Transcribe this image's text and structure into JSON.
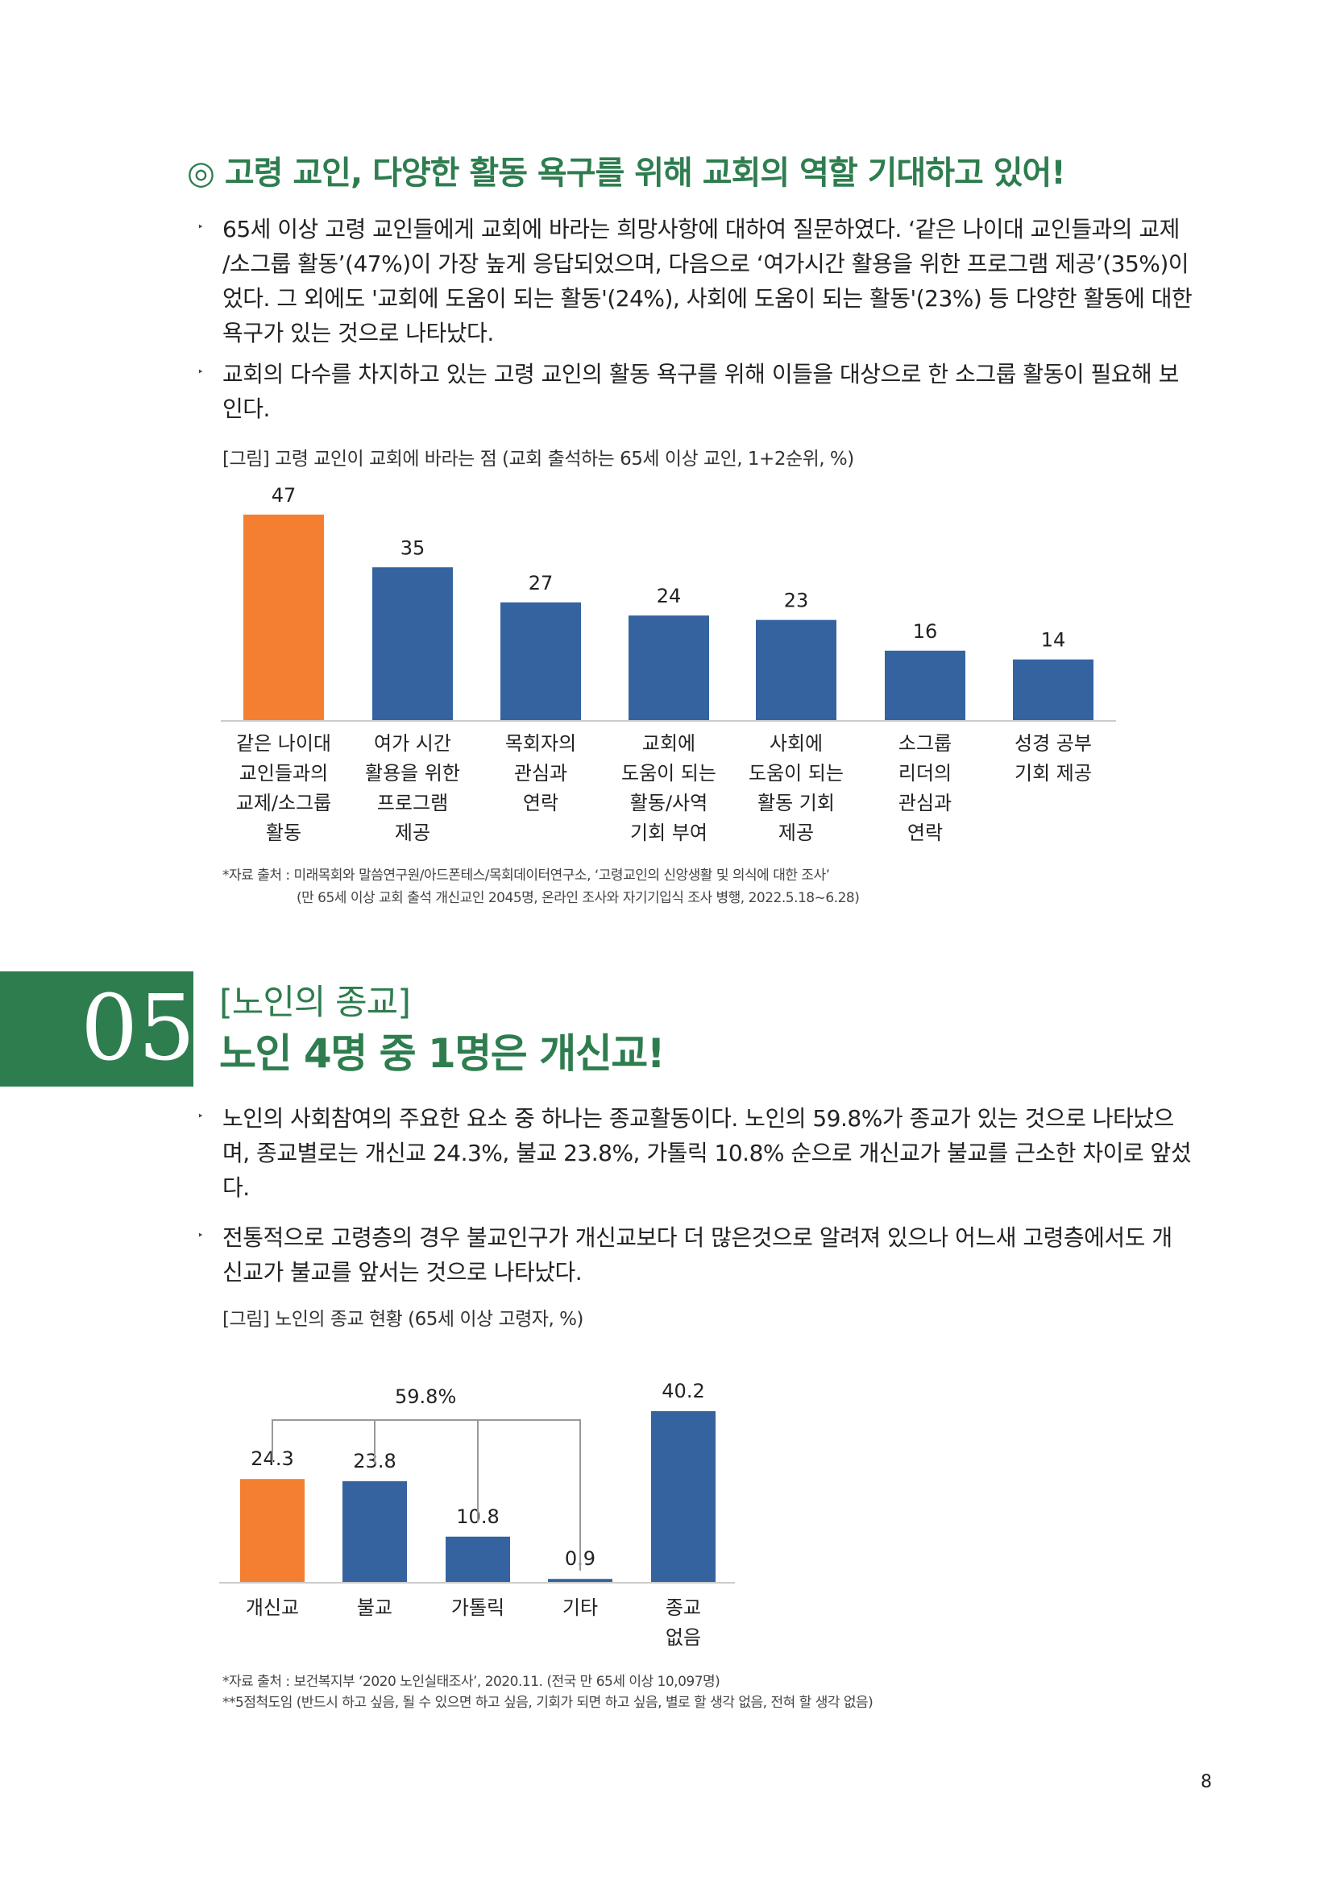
{
  "section1": {
    "heading": "◎ 고령 교인, 다양한 활동 욕구를 위해 교회의 역할 기대하고 있어!",
    "bullets": [
      [
        "65세 이상 고령 교인들에게 교회에 바라는 희망사항에 대하여 질문하였다. ‘같은 나이대 교인들과의 교제",
        "/소그룹 활동’(47%)이 가장 높게 응답되었으며, 다음으로 ‘여가시간 활용을 위한 프로그램 제공’(35%)이",
        "었다. 그 외에도 '교회에 도움이 되는 활동'(24%), 사회에 도움이 되는 활동'(23%) 등 다양한 활동에 대한",
        "욕구가 있는 것으로 나타났다."
      ],
      [
        "교회의 다수를 차지하고 있는 고령 교인의 활동 욕구를 위해 이들을 대상으로 한 소그룹 활동이 필요해 보",
        "인다."
      ]
    ],
    "caption": "[그림] 고령 교인이 교회에 바라는 점 (교회 출석하는 65세 이상 교인, 1+2순위, %)",
    "source_line1": "*자료 출처 : 미래목회와 말씀연구원/아드폰테스/목회데이터연구소, ‘고령교인의 신앙생활 및 의식에 대한 조사’",
    "source_line2": "(만 65세 이상 교회 출석 개신교인 2045명, 온라인 조사와 자기기입식 조사 병행, 2022.5.18~6.28)"
  },
  "section2": {
    "number": "05",
    "tag": "[노인의 종교]",
    "title": "노인 4명 중 1명은 개신교!",
    "bullets": [
      [
        "노인의 사회참여의 주요한 요소 중 하나는 종교활동이다. 노인의 59.8%가 종교가 있는 것으로 나타났으",
        "며, 종교별로는 개신교 24.3%, 불교 23.8%, 가톨릭 10.8% 순으로 개신교가 불교를 근소한 차이로 앞섰",
        "다."
      ],
      [
        "전통적으로 고령층의 경우 불교인구가 개신교보다 더 많은것으로 알려져 있으나 어느새 고령층에서도 개",
        "신교가 불교를 앞서는 것으로 나타났다."
      ]
    ],
    "caption": "[그림] 노인의 종교 현황 (65세 이상 고령자, %)",
    "bracket_label": "59.8%",
    "source_line1": "*자료 출처 : 보건복지부 ‘2020 노인실태조사’, 2020.11. (전국 만 65세 이상 10,097명)",
    "source_line2": "**5점척도임 (반드시 하고 싶음, 될 수 있으면 하고 싶음, 기회가 되면 하고 싶음, 별로 할 생각 없음, 전혀 할 생각 없음)"
  },
  "bullet_glyph": "‣",
  "page_number": "8",
  "colors": {
    "green": "#2e7d4f",
    "orange": "#f47f30",
    "blue": "#3563a0"
  },
  "chart_data": [
    {
      "type": "bar",
      "title": "",
      "categories": [
        "같은 나이대\n교인들과의\n교제/소그룹\n활동",
        "여가 시간\n활용을 위한\n프로그램\n제공",
        "목회자의\n관심과\n연락",
        "교회에\n도움이 되는\n활동/사역\n기회 부여",
        "사회에\n도움이 되는\n활동 기회\n제공",
        "소그룹\n리더의\n관심과\n연락",
        "성경 공부\n기회 제공"
      ],
      "values": [
        47,
        35,
        27,
        24,
        23,
        16,
        14
      ],
      "bar_colors": [
        "#f47f30",
        "#3563a0",
        "#3563a0",
        "#3563a0",
        "#3563a0",
        "#3563a0",
        "#3563a0"
      ],
      "ylim": [
        0,
        50
      ],
      "grid": false
    },
    {
      "type": "bar",
      "title": "",
      "categories": [
        "개신교",
        "불교",
        "가톨릭",
        "기타",
        "종교\n없음"
      ],
      "values": [
        24.3,
        23.8,
        10.8,
        0.9,
        40.2
      ],
      "value_labels": [
        "24.3",
        "23.8",
        "10.8",
        "0.9",
        "40.2"
      ],
      "bar_colors": [
        "#f47f30",
        "#3563a0",
        "#3563a0",
        "#3563a0",
        "#3563a0"
      ],
      "ylim": [
        0,
        45
      ],
      "grid": false
    }
  ]
}
